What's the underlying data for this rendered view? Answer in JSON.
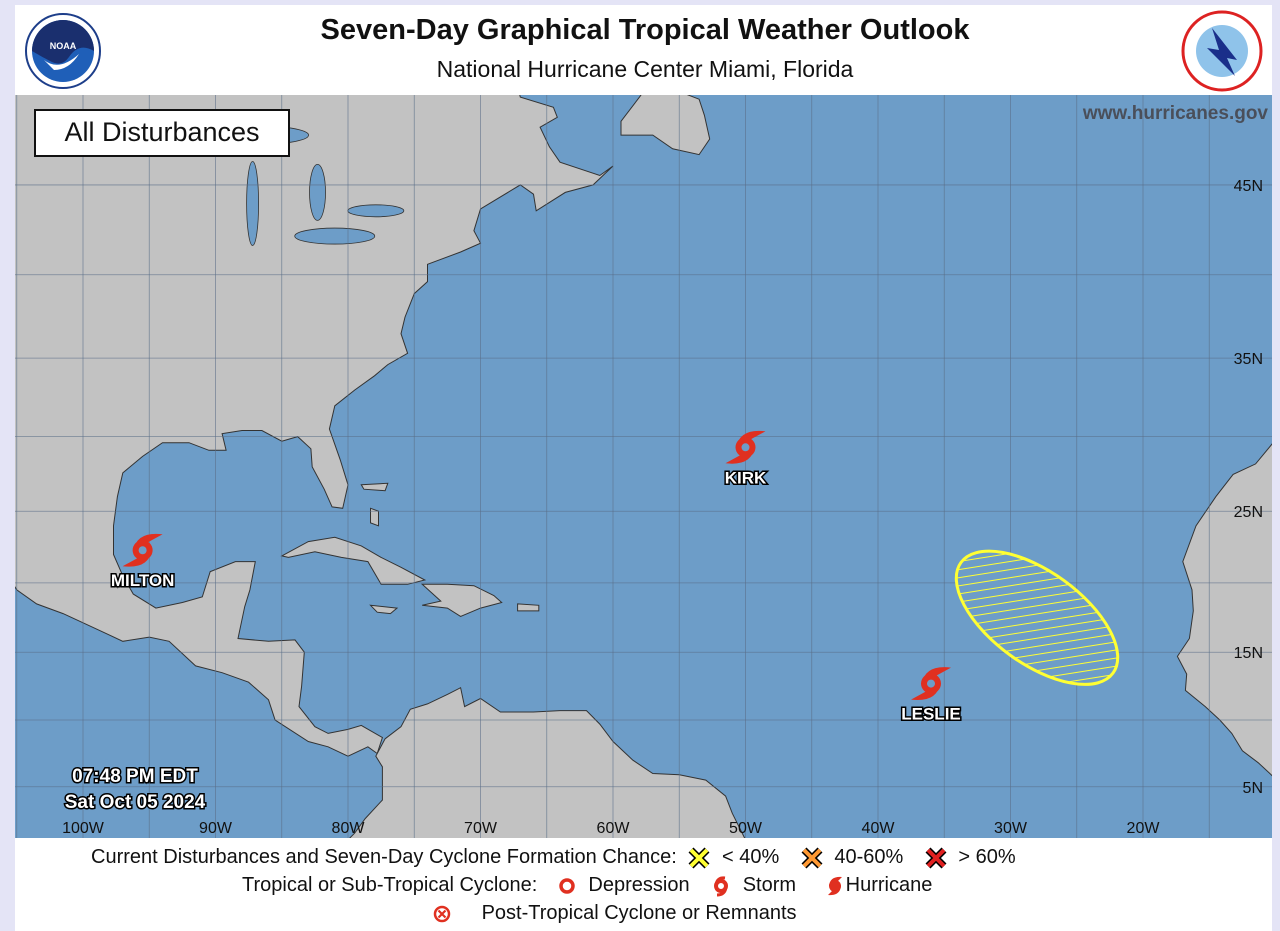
{
  "header": {
    "title": "Seven-Day Graphical Tropical Weather Outlook",
    "subtitle": "National Hurricane Center  Miami, Florida",
    "logos": [
      "NOAA",
      "NATIONAL WEATHER SERVICE"
    ]
  },
  "map": {
    "panel_label": "All Disturbances",
    "website": "www.hurricanes.gov",
    "timestamp_time": "07:48 PM EDT",
    "timestamp_date": "Sat Oct 05 2024",
    "lon_labels": [
      "100W",
      "90W",
      "80W",
      "70W",
      "60W",
      "50W",
      "40W",
      "30W",
      "20W"
    ],
    "lon_values": [
      -100,
      -90,
      -80,
      -70,
      -60,
      -50,
      -40,
      -30,
      -20
    ],
    "lat_labels": [
      "45N",
      "35N",
      "25N",
      "15N",
      "5N"
    ],
    "lat_values": [
      45,
      35,
      25,
      15,
      5
    ],
    "storms": [
      {
        "name": "MILTON",
        "type": "hurricane",
        "lon": -95.5,
        "lat": 22.3
      },
      {
        "name": "KIRK",
        "type": "hurricane",
        "lon": -50,
        "lat": 29.3
      },
      {
        "name": "LESLIE",
        "type": "hurricane",
        "lon": -36,
        "lat": 12.7
      }
    ],
    "disturbances": [
      {
        "chance": "< 40%",
        "color": "#ffff33",
        "center_lon": -28,
        "center_lat": 17.5
      }
    ],
    "colors": {
      "ocean": "#6d9dc8",
      "land": "#c2c2c2",
      "storm": "#e03020",
      "low": "#ffff33",
      "medium": "#ff9933",
      "high": "#e02020"
    }
  },
  "legend": {
    "row1_label": "Current Disturbances and Seven-Day Cyclone Formation Chance:",
    "low": "< 40%",
    "medium": "40-60%",
    "high": "> 60%",
    "row2_label": "Tropical or Sub-Tropical Cyclone:",
    "depression": "Depression",
    "storm": "Storm",
    "hurricane": "Hurricane",
    "row3_label": "Post-Tropical Cyclone or Remnants"
  }
}
